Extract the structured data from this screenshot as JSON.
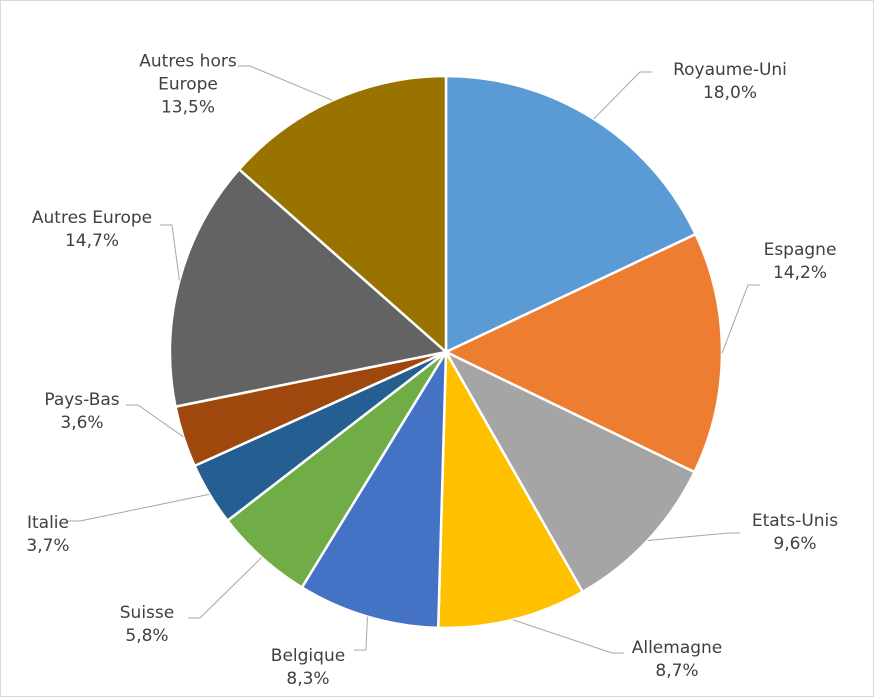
{
  "chart_data": {
    "type": "pie",
    "categories": [
      "Royaume-Uni",
      "Espagne",
      "Etats-Unis",
      "Allemagne",
      "Belgique",
      "Suisse",
      "Italie",
      "Pays-Bas",
      "Autres Europe",
      "Autres hors Europe"
    ],
    "values": [
      18.0,
      14.2,
      9.6,
      8.7,
      8.3,
      5.8,
      3.7,
      3.6,
      14.7,
      13.5
    ],
    "value_labels": [
      "18,0%",
      "14,2%",
      "9,6%",
      "8,7%",
      "8,3%",
      "5,8%",
      "3,7%",
      "3,6%",
      "14,7%",
      "13,5%"
    ],
    "colors": [
      "#5b9bd5",
      "#ed7d31",
      "#a5a5a5",
      "#ffc000",
      "#4472c4",
      "#70ad47",
      "#255e91",
      "#9e480e",
      "#636363",
      "#997300"
    ]
  }
}
